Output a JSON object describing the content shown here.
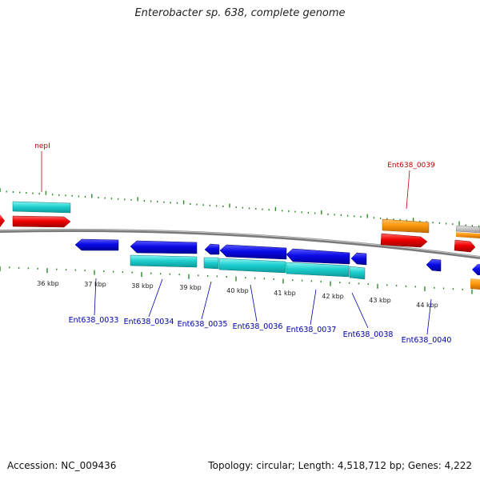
{
  "title": "Enterobacter sp. 638, complete genome",
  "accession": "Accession: NC_009436",
  "summary": "Topology: circular; Length: 4,518,712 bp; Genes: 4,222",
  "colors": {
    "backbone": "#8a8a8a",
    "tick": "#2a8a2a",
    "label_red": "#c00000",
    "label_blue": "#0000aa"
  },
  "ticks": [
    {
      "label": "36 kbp"
    },
    {
      "label": "37 kbp"
    },
    {
      "label": "38 kbp"
    },
    {
      "label": "39 kbp"
    },
    {
      "label": "40 kbp"
    },
    {
      "label": "41 kbp"
    },
    {
      "label": "42 kbp"
    },
    {
      "label": "43 kbp"
    },
    {
      "label": "44 kbp"
    }
  ],
  "gene_labels": [
    {
      "text": "nepI",
      "color": "red"
    },
    {
      "text": "Ent638_0039",
      "color": "red"
    },
    {
      "text": "Ent638_0033",
      "color": "blue"
    },
    {
      "text": "Ent638_0034",
      "color": "blue"
    },
    {
      "text": "Ent638_0035",
      "color": "blue"
    },
    {
      "text": "Ent638_0036",
      "color": "blue"
    },
    {
      "text": "Ent638_0037",
      "color": "blue"
    },
    {
      "text": "Ent638_0038",
      "color": "blue"
    },
    {
      "text": "Ent638_0040",
      "color": "blue"
    }
  ]
}
